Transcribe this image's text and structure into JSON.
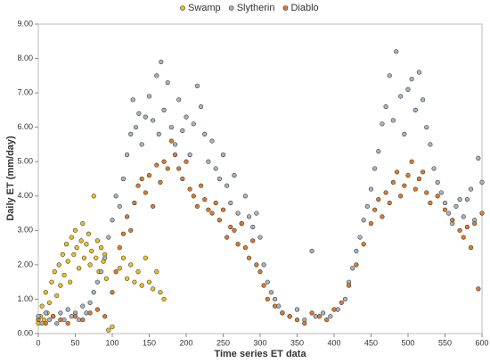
{
  "chart_data": {
    "type": "scatter",
    "xlabel": "Time series ET data",
    "ylabel": "Daily ET (mm/day)",
    "xlim": [
      0,
      600
    ],
    "xticks": [
      0,
      50,
      100,
      150,
      200,
      250,
      300,
      350,
      400,
      450,
      500,
      550,
      600
    ],
    "ylim": [
      0,
      9
    ],
    "yticks": [
      {
        "value": 0,
        "label": "0.00"
      },
      {
        "value": 1,
        "label": "1.00"
      },
      {
        "value": 2,
        "label": "2.00"
      },
      {
        "value": 3,
        "label": "3.00"
      },
      {
        "value": 4,
        "label": "4.00"
      },
      {
        "value": 5,
        "label": "5.00"
      },
      {
        "value": 6,
        "label": "6.00"
      },
      {
        "value": 7,
        "label": "7.00"
      },
      {
        "value": 8,
        "label": "8.00"
      },
      {
        "value": 9,
        "label": "9.00"
      }
    ],
    "legend": "top",
    "series": [
      {
        "name": "Swamp",
        "color": "#f2c316",
        "x": [
          0,
          3,
          5,
          8,
          10,
          12,
          15,
          18,
          20,
          22,
          25,
          28,
          30,
          33,
          35,
          38,
          40,
          43,
          45,
          48,
          50,
          52,
          55,
          58,
          60,
          62,
          65,
          68,
          70,
          72,
          75,
          78,
          80,
          82,
          85,
          88,
          90,
          92,
          95,
          100,
          110,
          115,
          120,
          125,
          130,
          135,
          140,
          145,
          150,
          155,
          160,
          165,
          170
        ],
        "values": [
          0.3,
          0.5,
          0.8,
          0.4,
          1.2,
          0.6,
          0.9,
          1.5,
          0.5,
          1.8,
          1.1,
          2.0,
          1.4,
          2.3,
          1.7,
          2.6,
          2.1,
          1.5,
          2.8,
          2.3,
          3.0,
          2.5,
          1.9,
          2.7,
          3.2,
          2.2,
          2.6,
          2.9,
          2.0,
          2.4,
          4.0,
          2.2,
          2.7,
          1.8,
          2.5,
          2.1,
          2.3,
          1.6,
          0.1,
          0.2,
          1.9,
          2.2,
          1.6,
          2.0,
          1.5,
          1.8,
          1.4,
          2.2,
          1.5,
          1.3,
          1.8,
          1.2,
          1.0
        ]
      },
      {
        "name": "Slytherin",
        "color": "#aab4c0",
        "x": [
          0,
          5,
          10,
          15,
          20,
          25,
          30,
          35,
          40,
          45,
          50,
          55,
          60,
          65,
          70,
          75,
          80,
          85,
          90,
          95,
          100,
          105,
          110,
          115,
          120,
          125,
          128,
          132,
          136,
          140,
          145,
          150,
          155,
          160,
          163,
          166,
          170,
          175,
          180,
          185,
          190,
          195,
          200,
          205,
          210,
          215,
          220,
          225,
          230,
          235,
          240,
          245,
          250,
          255,
          260,
          265,
          270,
          275,
          280,
          285,
          290,
          295,
          300,
          305,
          310,
          315,
          320,
          325,
          330,
          340,
          350,
          360,
          370,
          375,
          385,
          395,
          405,
          415,
          420,
          425,
          430,
          435,
          440,
          445,
          450,
          455,
          460,
          465,
          470,
          475,
          480,
          484,
          490,
          495,
          500,
          505,
          510,
          515,
          520,
          525,
          530,
          535,
          540,
          545,
          550,
          555,
          560,
          565,
          570,
          575,
          580,
          585,
          590,
          595,
          600
        ],
        "values": [
          0.5,
          0.3,
          0.6,
          0.4,
          0.5,
          0.3,
          0.6,
          0.4,
          0.7,
          0.5,
          0.6,
          0.4,
          0.8,
          0.6,
          0.9,
          1.2,
          1.5,
          1.8,
          2.2,
          2.8,
          3.3,
          4.0,
          3.7,
          4.5,
          5.2,
          5.8,
          6.8,
          6.0,
          6.4,
          5.5,
          6.3,
          6.9,
          6.2,
          7.5,
          5.8,
          7.9,
          6.5,
          7.3,
          6.0,
          5.5,
          6.8,
          5.9,
          6.3,
          5.2,
          6.1,
          7.2,
          6.6,
          5.8,
          5.0,
          5.6,
          4.8,
          4.5,
          5.2,
          4.3,
          3.8,
          4.6,
          3.5,
          3.2,
          4.0,
          3.4,
          3.1,
          3.5,
          2.8,
          2.0,
          1.5,
          1.2,
          1.0,
          0.8,
          0.6,
          0.5,
          0.7,
          0.4,
          2.4,
          0.5,
          0.6,
          0.5,
          0.7,
          1.0,
          1.5,
          1.9,
          2.4,
          2.8,
          3.3,
          3.7,
          4.2,
          4.8,
          5.3,
          6.1,
          6.6,
          7.5,
          6.2,
          8.2,
          6.9,
          5.8,
          7.1,
          7.4,
          6.5,
          7.6,
          6.8,
          6.0,
          5.5,
          4.8,
          4.4,
          4.1,
          3.8,
          3.5,
          3.2,
          3.7,
          3.9,
          3.4,
          3.9,
          4.2,
          3.3,
          5.1,
          4.4
        ]
      },
      {
        "name": "Diablo",
        "color": "#e07b2a",
        "x": [
          0,
          10,
          20,
          30,
          40,
          50,
          60,
          70,
          80,
          90,
          100,
          105,
          110,
          115,
          120,
          125,
          130,
          135,
          140,
          145,
          150,
          155,
          160,
          165,
          170,
          175,
          180,
          185,
          190,
          195,
          200,
          205,
          210,
          215,
          220,
          225,
          230,
          235,
          240,
          245,
          250,
          255,
          260,
          265,
          270,
          275,
          280,
          285,
          290,
          295,
          300,
          305,
          310,
          320,
          330,
          340,
          350,
          360,
          370,
          380,
          390,
          400,
          410,
          420,
          430,
          440,
          450,
          455,
          460,
          465,
          470,
          475,
          480,
          485,
          490,
          495,
          500,
          505,
          510,
          515,
          520,
          525,
          530,
          540,
          550,
          560,
          570,
          575,
          580,
          585,
          590,
          595,
          600
        ],
        "values": [
          0.4,
          0.3,
          0.5,
          0.4,
          0.3,
          0.5,
          0.4,
          0.6,
          0.7,
          0.5,
          1.2,
          1.8,
          2.5,
          2.9,
          3.4,
          3.0,
          3.8,
          4.3,
          4.5,
          4.1,
          4.6,
          3.7,
          4.9,
          4.4,
          5.0,
          4.8,
          5.6,
          5.2,
          4.8,
          4.5,
          5.0,
          4.2,
          4.0,
          3.7,
          4.3,
          3.9,
          3.6,
          3.5,
          3.8,
          3.3,
          3.6,
          2.8,
          3.1,
          3.0,
          2.6,
          3.2,
          2.5,
          2.2,
          2.7,
          2.0,
          1.8,
          1.4,
          1.0,
          0.8,
          0.6,
          0.5,
          0.4,
          0.3,
          0.6,
          0.5,
          0.4,
          0.7,
          0.9,
          1.4,
          2.0,
          2.6,
          3.2,
          3.6,
          3.9,
          3.4,
          4.1,
          3.8,
          4.4,
          4.7,
          4.0,
          4.3,
          4.6,
          5.0,
          4.2,
          4.5,
          4.7,
          4.1,
          3.8,
          4.0,
          3.6,
          3.3,
          3.0,
          2.8,
          3.1,
          2.5,
          3.2,
          1.3,
          3.5
        ]
      }
    ]
  }
}
